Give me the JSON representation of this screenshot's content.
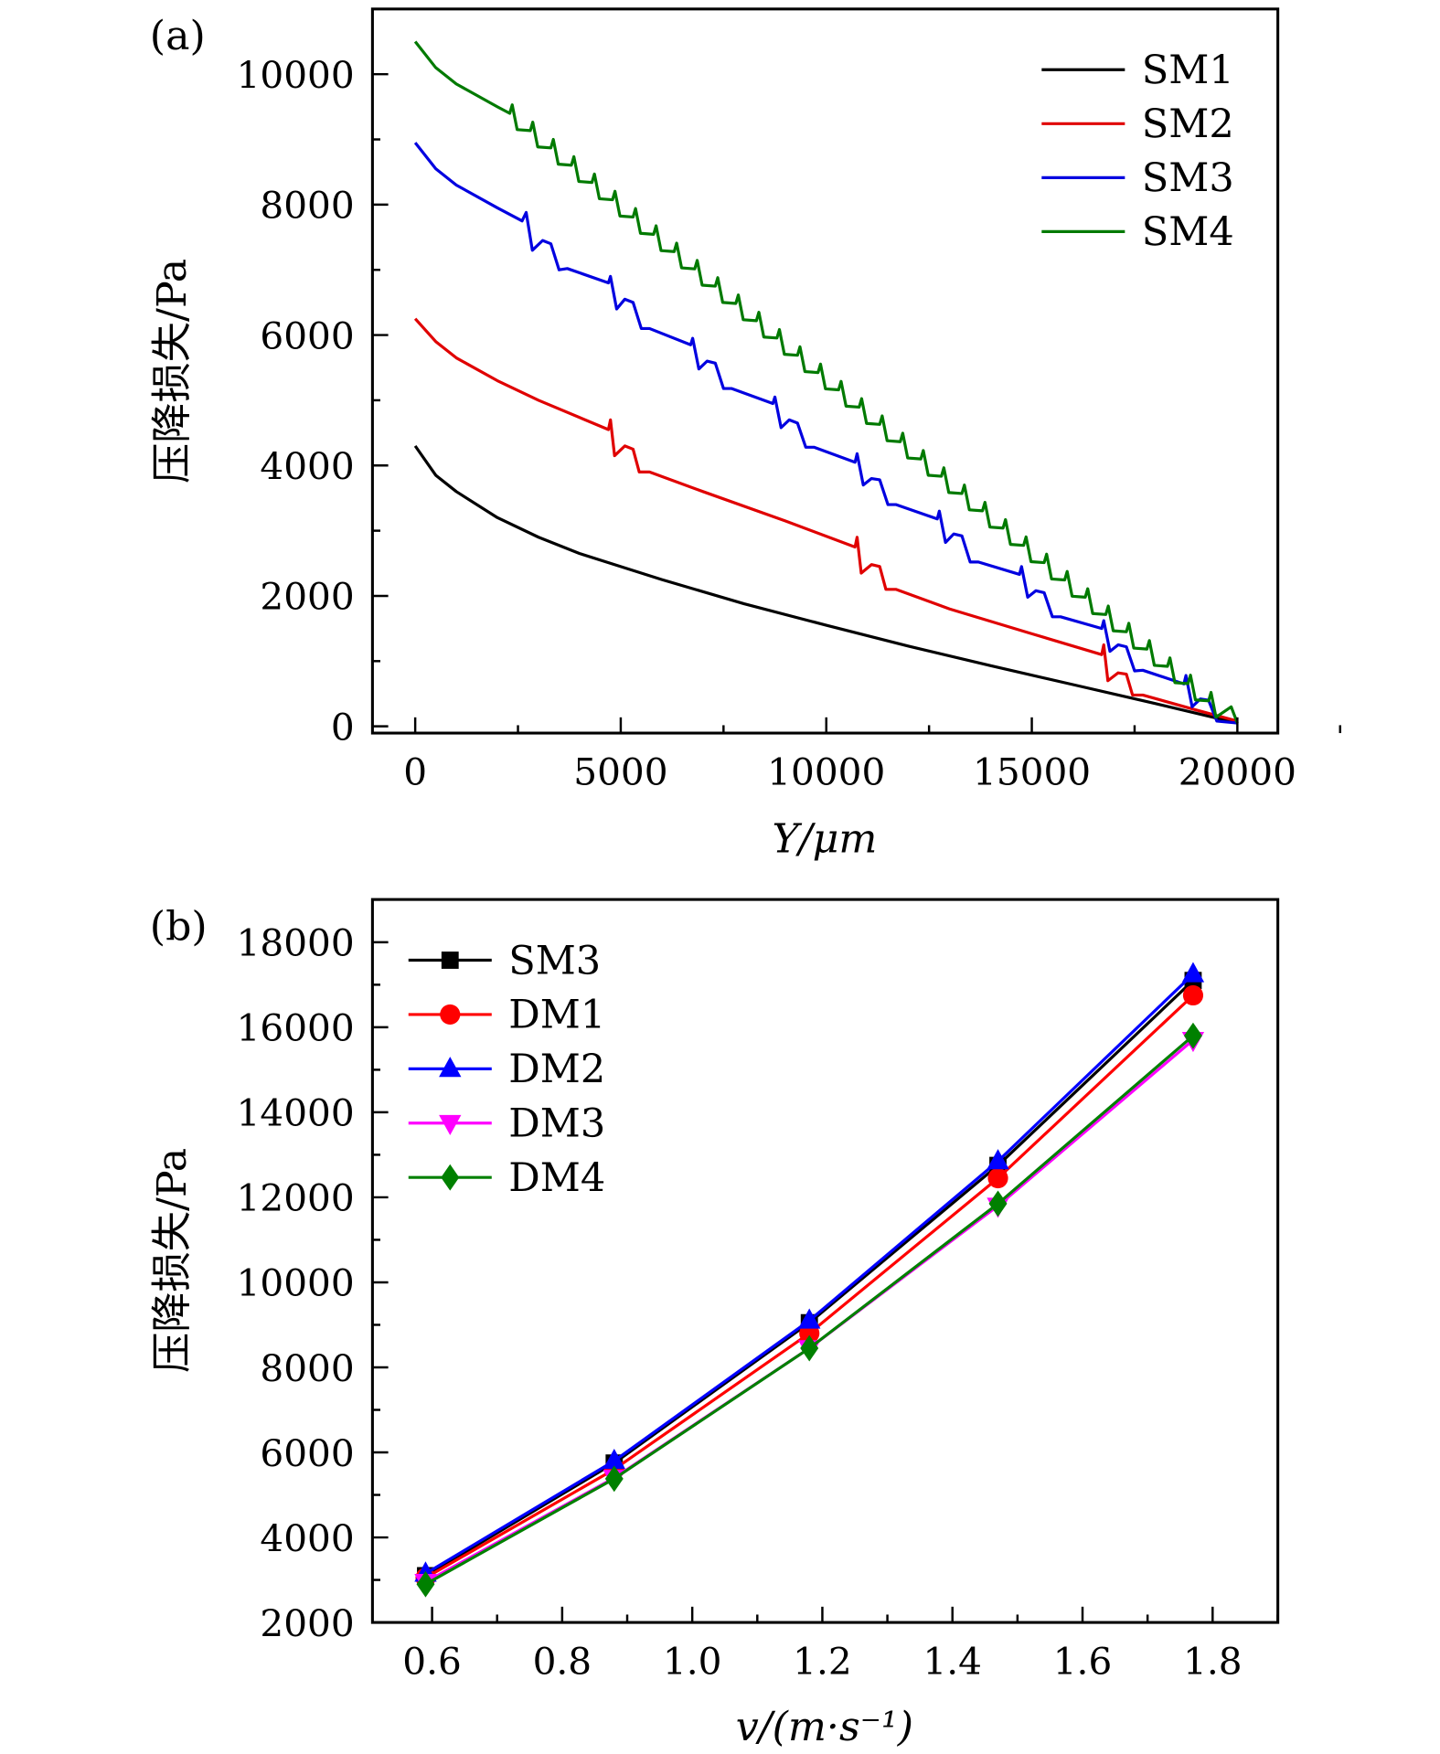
{
  "chart_data": [
    {
      "panel_label": "(a)",
      "type": "line",
      "xlabel": "Y/μm",
      "ylabel": "压降损失/Pa",
      "xlim": [
        -1000,
        21000
      ],
      "ylim": [
        0,
        11000
      ],
      "xticks": [
        0,
        5000,
        10000,
        15000,
        20000
      ],
      "xtick_labels": [
        "0",
        "5000",
        "10000",
        "15000",
        "20000"
      ],
      "yticks": [
        0,
        2000,
        4000,
        6000,
        8000,
        10000
      ],
      "ytick_labels": [
        "0",
        "2000",
        "4000",
        "6000",
        "8000",
        "10000"
      ],
      "grid": false,
      "legend_position": "top-right",
      "series": [
        {
          "name": "SM1",
          "color": "#000000",
          "points": [
            [
              0,
              4300
            ],
            [
              500,
              3850
            ],
            [
              1000,
              3600
            ],
            [
              2000,
              3200
            ],
            [
              3000,
              2900
            ],
            [
              4000,
              2650
            ],
            [
              5000,
              2450
            ],
            [
              6000,
              2250
            ],
            [
              8000,
              1880
            ],
            [
              10000,
              1550
            ],
            [
              12000,
              1230
            ],
            [
              14000,
              930
            ],
            [
              16000,
              640
            ],
            [
              18000,
              350
            ],
            [
              20000,
              50
            ]
          ]
        },
        {
          "name": "SM2",
          "color": "#e00000",
          "points": [
            [
              0,
              6250
            ],
            [
              500,
              5900
            ],
            [
              1000,
              5650
            ],
            [
              2000,
              5300
            ],
            [
              3000,
              5000
            ],
            [
              4700,
              4550
            ],
            [
              4750,
              4700
            ],
            [
              4850,
              4150
            ],
            [
              5100,
              4300
            ],
            [
              5300,
              4250
            ],
            [
              5450,
              3900
            ],
            [
              5700,
              3900
            ],
            [
              7000,
              3600
            ],
            [
              9000,
              3150
            ],
            [
              10700,
              2750
            ],
            [
              10750,
              2900
            ],
            [
              10850,
              2350
            ],
            [
              11100,
              2480
            ],
            [
              11300,
              2450
            ],
            [
              11450,
              2100
            ],
            [
              11700,
              2100
            ],
            [
              13000,
              1800
            ],
            [
              15000,
              1420
            ],
            [
              16700,
              1100
            ],
            [
              16750,
              1250
            ],
            [
              16850,
              700
            ],
            [
              17100,
              820
            ],
            [
              17300,
              800
            ],
            [
              17450,
              480
            ],
            [
              17700,
              480
            ],
            [
              19000,
              250
            ],
            [
              20000,
              80
            ]
          ]
        },
        {
          "name": "SM3",
          "color": "#0000e0",
          "points": [
            [
              0,
              8950
            ],
            [
              500,
              8550
            ],
            [
              1000,
              8300
            ],
            [
              2000,
              7950
            ],
            [
              2600,
              7750
            ],
            [
              2700,
              7880
            ],
            [
              2850,
              7300
            ],
            [
              3100,
              7450
            ],
            [
              3300,
              7400
            ],
            [
              3500,
              7000
            ],
            [
              3700,
              7020
            ],
            [
              4700,
              6800
            ],
            [
              4750,
              6900
            ],
            [
              4900,
              6400
            ],
            [
              5100,
              6550
            ],
            [
              5300,
              6500
            ],
            [
              5500,
              6100
            ],
            [
              5700,
              6100
            ],
            [
              6700,
              5850
            ],
            [
              6750,
              5950
            ],
            [
              6900,
              5480
            ],
            [
              7100,
              5600
            ],
            [
              7300,
              5570
            ],
            [
              7500,
              5180
            ],
            [
              7700,
              5180
            ],
            [
              8700,
              4950
            ],
            [
              8750,
              5050
            ],
            [
              8900,
              4580
            ],
            [
              9100,
              4700
            ],
            [
              9300,
              4650
            ],
            [
              9500,
              4280
            ],
            [
              9700,
              4280
            ],
            [
              10700,
              4050
            ],
            [
              10750,
              4180
            ],
            [
              10900,
              3700
            ],
            [
              11100,
              3800
            ],
            [
              11300,
              3780
            ],
            [
              11500,
              3400
            ],
            [
              11700,
              3400
            ],
            [
              12700,
              3180
            ],
            [
              12750,
              3300
            ],
            [
              12900,
              2820
            ],
            [
              13100,
              2950
            ],
            [
              13300,
              2920
            ],
            [
              13500,
              2520
            ],
            [
              13700,
              2520
            ],
            [
              14700,
              2330
            ],
            [
              14750,
              2450
            ],
            [
              14900,
              1980
            ],
            [
              15100,
              2080
            ],
            [
              15300,
              2050
            ],
            [
              15500,
              1680
            ],
            [
              15700,
              1680
            ],
            [
              16700,
              1500
            ],
            [
              16750,
              1620
            ],
            [
              16900,
              1150
            ],
            [
              17100,
              1250
            ],
            [
              17300,
              1220
            ],
            [
              17500,
              850
            ],
            [
              17700,
              860
            ],
            [
              18700,
              650
            ],
            [
              18750,
              780
            ],
            [
              18900,
              300
            ],
            [
              19100,
              420
            ],
            [
              19300,
              400
            ],
            [
              19500,
              80
            ],
            [
              20000,
              50
            ]
          ]
        },
        {
          "name": "SM4",
          "color": "#007a00",
          "points": [
            [
              0,
              10500
            ],
            [
              500,
              10100
            ],
            [
              1000,
              9850
            ],
            [
              2000,
              9500
            ],
            [
              2300,
              9400
            ],
            [
              2360,
              9530
            ],
            [
              2480,
              9150
            ],
            [
              2800,
              9135
            ],
            [
              2860,
              9265
            ],
            [
              2980,
              8885
            ],
            [
              3300,
              8870
            ],
            [
              3360,
              9000
            ],
            [
              3480,
              8620
            ],
            [
              3800,
              8605
            ],
            [
              3860,
              8735
            ],
            [
              3980,
              8355
            ],
            [
              4300,
              8340
            ],
            [
              4360,
              8470
            ],
            [
              4480,
              8090
            ],
            [
              4800,
              8075
            ],
            [
              4860,
              8205
            ],
            [
              4980,
              7825
            ],
            [
              5300,
              7810
            ],
            [
              5360,
              7940
            ],
            [
              5480,
              7560
            ],
            [
              5800,
              7545
            ],
            [
              5860,
              7675
            ],
            [
              5980,
              7295
            ],
            [
              6300,
              7280
            ],
            [
              6360,
              7410
            ],
            [
              6480,
              7030
            ],
            [
              6800,
              7015
            ],
            [
              6860,
              7145
            ],
            [
              6980,
              6765
            ],
            [
              7300,
              6750
            ],
            [
              7360,
              6880
            ],
            [
              7480,
              6500
            ],
            [
              7800,
              6485
            ],
            [
              7860,
              6615
            ],
            [
              7980,
              6235
            ],
            [
              8300,
              6220
            ],
            [
              8360,
              6350
            ],
            [
              8480,
              5970
            ],
            [
              8800,
              5955
            ],
            [
              8860,
              6085
            ],
            [
              8980,
              5705
            ],
            [
              9300,
              5690
            ],
            [
              9360,
              5820
            ],
            [
              9480,
              5440
            ],
            [
              9800,
              5425
            ],
            [
              9860,
              5555
            ],
            [
              9980,
              5175
            ],
            [
              10300,
              5160
            ],
            [
              10360,
              5290
            ],
            [
              10480,
              4910
            ],
            [
              10800,
              4895
            ],
            [
              10860,
              5025
            ],
            [
              10980,
              4645
            ],
            [
              11300,
              4630
            ],
            [
              11360,
              4760
            ],
            [
              11480,
              4380
            ],
            [
              11800,
              4365
            ],
            [
              11860,
              4495
            ],
            [
              11980,
              4115
            ],
            [
              12300,
              4100
            ],
            [
              12360,
              4230
            ],
            [
              12480,
              3850
            ],
            [
              12800,
              3835
            ],
            [
              12860,
              3965
            ],
            [
              12980,
              3585
            ],
            [
              13300,
              3570
            ],
            [
              13360,
              3700
            ],
            [
              13480,
              3320
            ],
            [
              13800,
              3305
            ],
            [
              13860,
              3435
            ],
            [
              13980,
              3055
            ],
            [
              14300,
              3040
            ],
            [
              14360,
              3170
            ],
            [
              14480,
              2790
            ],
            [
              14800,
              2775
            ],
            [
              14860,
              2905
            ],
            [
              14980,
              2525
            ],
            [
              15300,
              2510
            ],
            [
              15360,
              2640
            ],
            [
              15480,
              2260
            ],
            [
              15800,
              2245
            ],
            [
              15860,
              2375
            ],
            [
              15980,
              1995
            ],
            [
              16300,
              1980
            ],
            [
              16360,
              2110
            ],
            [
              16480,
              1730
            ],
            [
              16800,
              1715
            ],
            [
              16860,
              1845
            ],
            [
              16980,
              1465
            ],
            [
              17300,
              1450
            ],
            [
              17360,
              1580
            ],
            [
              17480,
              1200
            ],
            [
              17800,
              1185
            ],
            [
              17860,
              1315
            ],
            [
              17980,
              935
            ],
            [
              18300,
              920
            ],
            [
              18360,
              1050
            ],
            [
              18480,
              670
            ],
            [
              18800,
              655
            ],
            [
              18860,
              785
            ],
            [
              18980,
              405
            ],
            [
              19300,
              390
            ],
            [
              19360,
              520
            ],
            [
              19480,
              140
            ],
            [
              19850,
              300
            ],
            [
              20000,
              50
            ]
          ]
        }
      ]
    },
    {
      "panel_label": "(b)",
      "type": "line",
      "xlabel": "v/(m·s⁻¹)",
      "ylabel": "压降损失/Pa",
      "xlim": [
        0.5,
        1.9
      ],
      "ylim": [
        2000,
        19000
      ],
      "xticks": [
        0.6,
        0.8,
        1.0,
        1.2,
        1.4,
        1.6,
        1.8
      ],
      "xtick_labels": [
        "0.6",
        "0.8",
        "1.0",
        "1.2",
        "1.4",
        "1.6",
        "1.8"
      ],
      "yticks": [
        2000,
        4000,
        6000,
        8000,
        10000,
        12000,
        14000,
        16000,
        18000
      ],
      "ytick_labels": [
        "2000",
        "4000",
        "6000",
        "8000",
        "10000",
        "12000",
        "14000",
        "16000",
        "18000"
      ],
      "grid": false,
      "legend_position": "top-left",
      "x": [
        0.59,
        0.88,
        1.18,
        1.47,
        1.77
      ],
      "series": [
        {
          "name": "SM3",
          "color": "#000000",
          "marker": "square",
          "values": [
            3100,
            5750,
            9050,
            12750,
            17100
          ]
        },
        {
          "name": "DM1",
          "color": "#ff0000",
          "marker": "circle",
          "values": [
            3050,
            5600,
            8800,
            12450,
            16750
          ]
        },
        {
          "name": "DM2",
          "color": "#0000ff",
          "marker": "triangle-up",
          "values": [
            3150,
            5800,
            9100,
            12850,
            17250
          ]
        },
        {
          "name": "DM3",
          "color": "#ff00ff",
          "marker": "triangle-down",
          "values": [
            2950,
            5400,
            8450,
            11800,
            15700
          ]
        },
        {
          "name": "DM4",
          "color": "#008000",
          "marker": "diamond",
          "values": [
            2900,
            5380,
            8450,
            11850,
            15800
          ]
        }
      ]
    }
  ]
}
